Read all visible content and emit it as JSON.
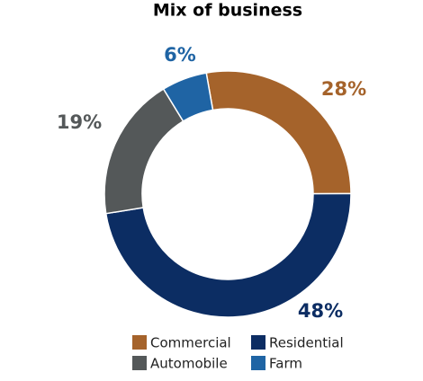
{
  "chart_data": {
    "type": "donut",
    "title": "Mix of business",
    "categories": [
      "Commercial",
      "Residential",
      "Automobile",
      "Farm"
    ],
    "values": [
      28,
      48,
      19,
      6
    ],
    "value_labels": [
      "28%",
      "48%",
      "19%",
      "6%"
    ],
    "colors": [
      "#a5632b",
      "#0c2d63",
      "#545859",
      "#1f64a4"
    ]
  }
}
